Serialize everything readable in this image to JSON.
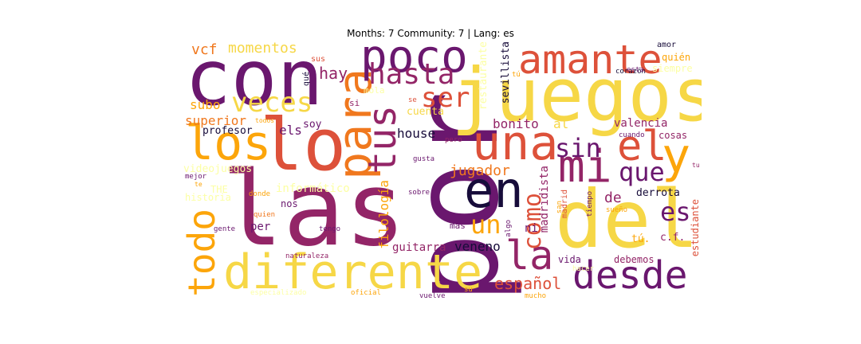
{
  "title": "Months: 7 Community: 7 | Lang: es",
  "colors": {
    "black": "#170c3a",
    "purple": "#6a176e",
    "magenta": "#932567",
    "red": "#dd513a",
    "orange": "#f0781e",
    "amber": "#fca50a",
    "yellow": "#f6d746",
    "pale": "#fcffa4"
  },
  "words": [
    {
      "text": "por",
      "color": "#6a176e"
    },
    {
      "text": "las",
      "color": "#932567"
    },
    {
      "text": "juegos",
      "color": "#f6d746"
    },
    {
      "text": "con",
      "color": "#6a176e"
    },
    {
      "text": "del",
      "color": "#f6d746"
    },
    {
      "text": "lo",
      "color": "#dd513a"
    },
    {
      "text": "diferente",
      "color": "#f6d746"
    },
    {
      "text": "para",
      "color": "#f0781e"
    },
    {
      "text": "una",
      "color": "#dd513a"
    },
    {
      "text": "amante",
      "color": "#dd513a"
    },
    {
      "text": "en",
      "color": "#170c3a"
    },
    {
      "text": "los",
      "color": "#fca50a"
    },
    {
      "text": "tus",
      "color": "#932567"
    },
    {
      "text": "poco",
      "color": "#6a176e"
    },
    {
      "text": "mi",
      "color": "#932567"
    },
    {
      "text": "el",
      "color": "#dd513a"
    },
    {
      "text": "y",
      "color": "#fca50a"
    },
    {
      "text": "desde",
      "color": "#6a176e"
    },
    {
      "text": "todo",
      "color": "#fca50a"
    },
    {
      "text": "la",
      "color": "#932567"
    },
    {
      "text": "veces",
      "color": "#f6d746"
    },
    {
      "text": "hasta",
      "color": "#932567"
    },
    {
      "text": "sin",
      "color": "#6a176e"
    },
    {
      "text": "que",
      "color": "#6a176e"
    },
    {
      "text": "ser",
      "color": "#dd513a"
    },
    {
      "text": "como",
      "color": "#dd513a"
    },
    {
      "text": "es",
      "color": "#6a176e"
    },
    {
      "text": "un",
      "color": "#fca50a"
    },
    {
      "text": "español",
      "color": "#dd513a"
    },
    {
      "text": "jugador",
      "color": "#f0781e"
    },
    {
      "text": "hay",
      "color": "#932567"
    },
    {
      "text": "momentos",
      "color": "#f6d746"
    },
    {
      "text": "vcf",
      "color": "#f0781e"
    },
    {
      "text": "subo",
      "color": "#fca50a"
    },
    {
      "text": "superior",
      "color": "#f0781e"
    },
    {
      "text": "profesor",
      "color": "#170c3a"
    },
    {
      "text": "els",
      "color": "#6a176e"
    },
    {
      "text": "house",
      "color": "#170c3a"
    },
    {
      "text": "bonito",
      "color": "#932567"
    },
    {
      "text": "al",
      "color": "#f6d746"
    },
    {
      "text": "valencia",
      "color": "#932567"
    },
    {
      "text": "filología",
      "color": "#fca50a"
    },
    {
      "text": "madridista",
      "color": "#932567"
    },
    {
      "text": "informático",
      "color": "#fcffa4"
    },
    {
      "text": "videojuegos",
      "color": "#fcffa4"
    },
    {
      "text": "restaurante",
      "color": "#fcffa4"
    },
    {
      "text": "sevillista",
      "color": "#170c3a"
    },
    {
      "text": "cuenta",
      "color": "#f6d746"
    },
    {
      "text": "soy",
      "color": "#6a176e"
    },
    {
      "text": "de",
      "color": "#932567"
    },
    {
      "text": "derrota",
      "color": "#170c3a"
    },
    {
      "text": "nos",
      "color": "#6a176e"
    },
    {
      "text": "per",
      "color": "#6a176e"
    },
    {
      "text": "guitarra",
      "color": "#932567"
    },
    {
      "text": "veneno",
      "color": "#170c3a"
    },
    {
      "text": "vida",
      "color": "#6a176e"
    },
    {
      "text": "debemos",
      "color": "#932567"
    },
    {
      "text": "estudiante",
      "color": "#dd513a"
    },
    {
      "text": "c.f.",
      "color": "#932567"
    },
    {
      "text": "tú.",
      "color": "#fca50a"
    },
    {
      "text": "cosas",
      "color": "#932567"
    },
    {
      "text": "quién",
      "color": "#fca50a"
    },
    {
      "text": "siempre",
      "color": "#fcffa4"
    },
    {
      "text": "amor",
      "color": "#170c3a"
    },
    {
      "text": "corazón",
      "color": "#170c3a"
    },
    {
      "text": "esta",
      "color": "#6a176e"
    },
    {
      "text": "tú",
      "color": "#fca50a"
    },
    {
      "text": "qué",
      "color": "#170c3a"
    },
    {
      "text": "sus",
      "color": "#dd513a"
    },
    {
      "text": "si",
      "color": "#932567"
    },
    {
      "text": "mola",
      "color": "#fcffa4"
    },
    {
      "text": "se",
      "color": "#dd513a"
    },
    {
      "text": "todos",
      "color": "#fca50a"
    },
    {
      "text": "THE",
      "color": "#fcffa4"
    },
    {
      "text": "historia",
      "color": "#fcffa4"
    },
    {
      "text": "mejor",
      "color": "#6a176e"
    },
    {
      "text": "te",
      "color": "#fca50a"
    },
    {
      "text": "donde",
      "color": "#fca50a"
    },
    {
      "text": "quien",
      "color": "#f0781e"
    },
    {
      "text": "gente",
      "color": "#6a176e"
    },
    {
      "text": "tengo",
      "color": "#6a176e"
    },
    {
      "text": "más",
      "color": "#6a176e"
    },
    {
      "text": "algo",
      "color": "#6a176e"
    },
    {
      "text": "ni",
      "color": "#6a176e"
    },
    {
      "text": "madrid",
      "color": "#dd513a"
    },
    {
      "text": "san",
      "color": "#fca50a"
    },
    {
      "text": "tiempo",
      "color": "#6a176e"
    },
    {
      "text": "sueño",
      "color": "#fca50a"
    },
    {
      "text": "hacer",
      "color": "#fcffa4"
    },
    {
      "text": "cuando",
      "color": "#6a176e"
    },
    {
      "text": "tu",
      "color": "#932567"
    },
    {
      "text": "pero",
      "color": "#932567"
    },
    {
      "text": "gusta",
      "color": "#6a176e"
    },
    {
      "text": "sobre",
      "color": "#6a176e"
    },
    {
      "text": "naturaleza",
      "color": "#932567"
    },
    {
      "text": "especializado",
      "color": "#fcffa4"
    },
    {
      "text": "oficial",
      "color": "#fca50a"
    },
    {
      "text": "vuelve",
      "color": "#6a176e"
    },
    {
      "text": "su",
      "color": "#fca50a"
    },
    {
      "text": "mucho",
      "color": "#fca50a"
    }
  ]
}
